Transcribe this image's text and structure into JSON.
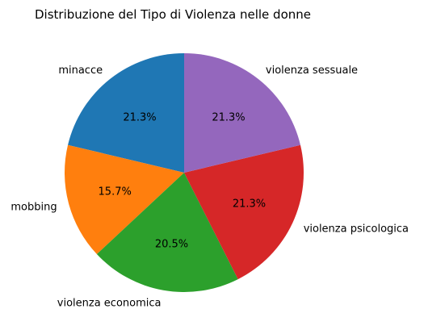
{
  "chart_data": {
    "type": "pie",
    "title": "Distribuzione del Tipo di Violenza nelle donne",
    "start_angle_deg": 90,
    "direction": "counterclockwise",
    "slices": [
      {
        "label": "minacce",
        "value": 21.3,
        "pct_label": "21.3%",
        "color": "#1f77b4"
      },
      {
        "label": "mobbing",
        "value": 15.7,
        "pct_label": "15.7%",
        "color": "#ff7f0e"
      },
      {
        "label": "violenza economica",
        "value": 20.5,
        "pct_label": "20.5%",
        "color": "#2ca02c"
      },
      {
        "label": "violenza psicologica",
        "value": 21.3,
        "pct_label": "21.3%",
        "color": "#d62728"
      },
      {
        "label": "violenza sessuale",
        "value": 21.3,
        "pct_label": "21.3%",
        "color": "#9467bd"
      }
    ]
  }
}
